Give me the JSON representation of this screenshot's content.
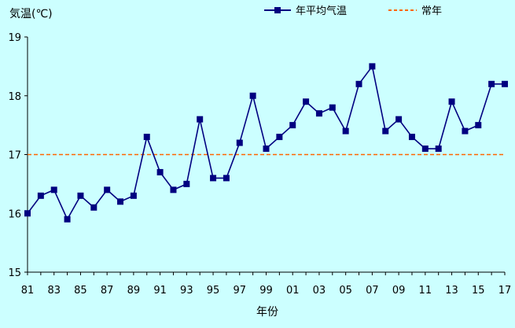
{
  "chart_data": {
    "type": "line",
    "ylabel": "気温(℃)",
    "xlabel": "年份",
    "ylim": [
      15,
      19
    ],
    "yticks": [
      15,
      16,
      17,
      18,
      19
    ],
    "legend_position": "top",
    "grid": false,
    "xtick_labels": [
      "81",
      "83",
      "85",
      "87",
      "89",
      "91",
      "93",
      "95",
      "97",
      "99",
      "01",
      "03",
      "05",
      "07",
      "09",
      "11",
      "13",
      "15",
      "17"
    ],
    "x": [
      "81",
      "82",
      "83",
      "84",
      "85",
      "86",
      "87",
      "88",
      "89",
      "90",
      "91",
      "92",
      "93",
      "94",
      "95",
      "96",
      "97",
      "98",
      "99",
      "00",
      "01",
      "02",
      "03",
      "04",
      "05",
      "06",
      "07",
      "08",
      "09",
      "10",
      "11",
      "12",
      "13",
      "14",
      "15",
      "16",
      "17"
    ],
    "series": [
      {
        "name": "年平均气温",
        "color": "#000080",
        "marker": "square",
        "values": [
          16.0,
          16.3,
          16.4,
          15.9,
          16.3,
          16.1,
          16.4,
          16.2,
          16.3,
          17.3,
          16.7,
          16.4,
          16.5,
          17.6,
          16.6,
          16.6,
          17.2,
          18.0,
          17.1,
          17.3,
          17.5,
          17.9,
          17.7,
          17.8,
          17.4,
          18.2,
          18.5,
          17.4,
          17.6,
          17.3,
          17.1,
          17.1,
          17.9,
          17.4,
          17.5,
          18.2,
          18.2
        ]
      }
    ],
    "reference_lines": [
      {
        "name": "常年",
        "value": 17.0,
        "color": "#ff6600",
        "style": "dashed"
      }
    ]
  }
}
